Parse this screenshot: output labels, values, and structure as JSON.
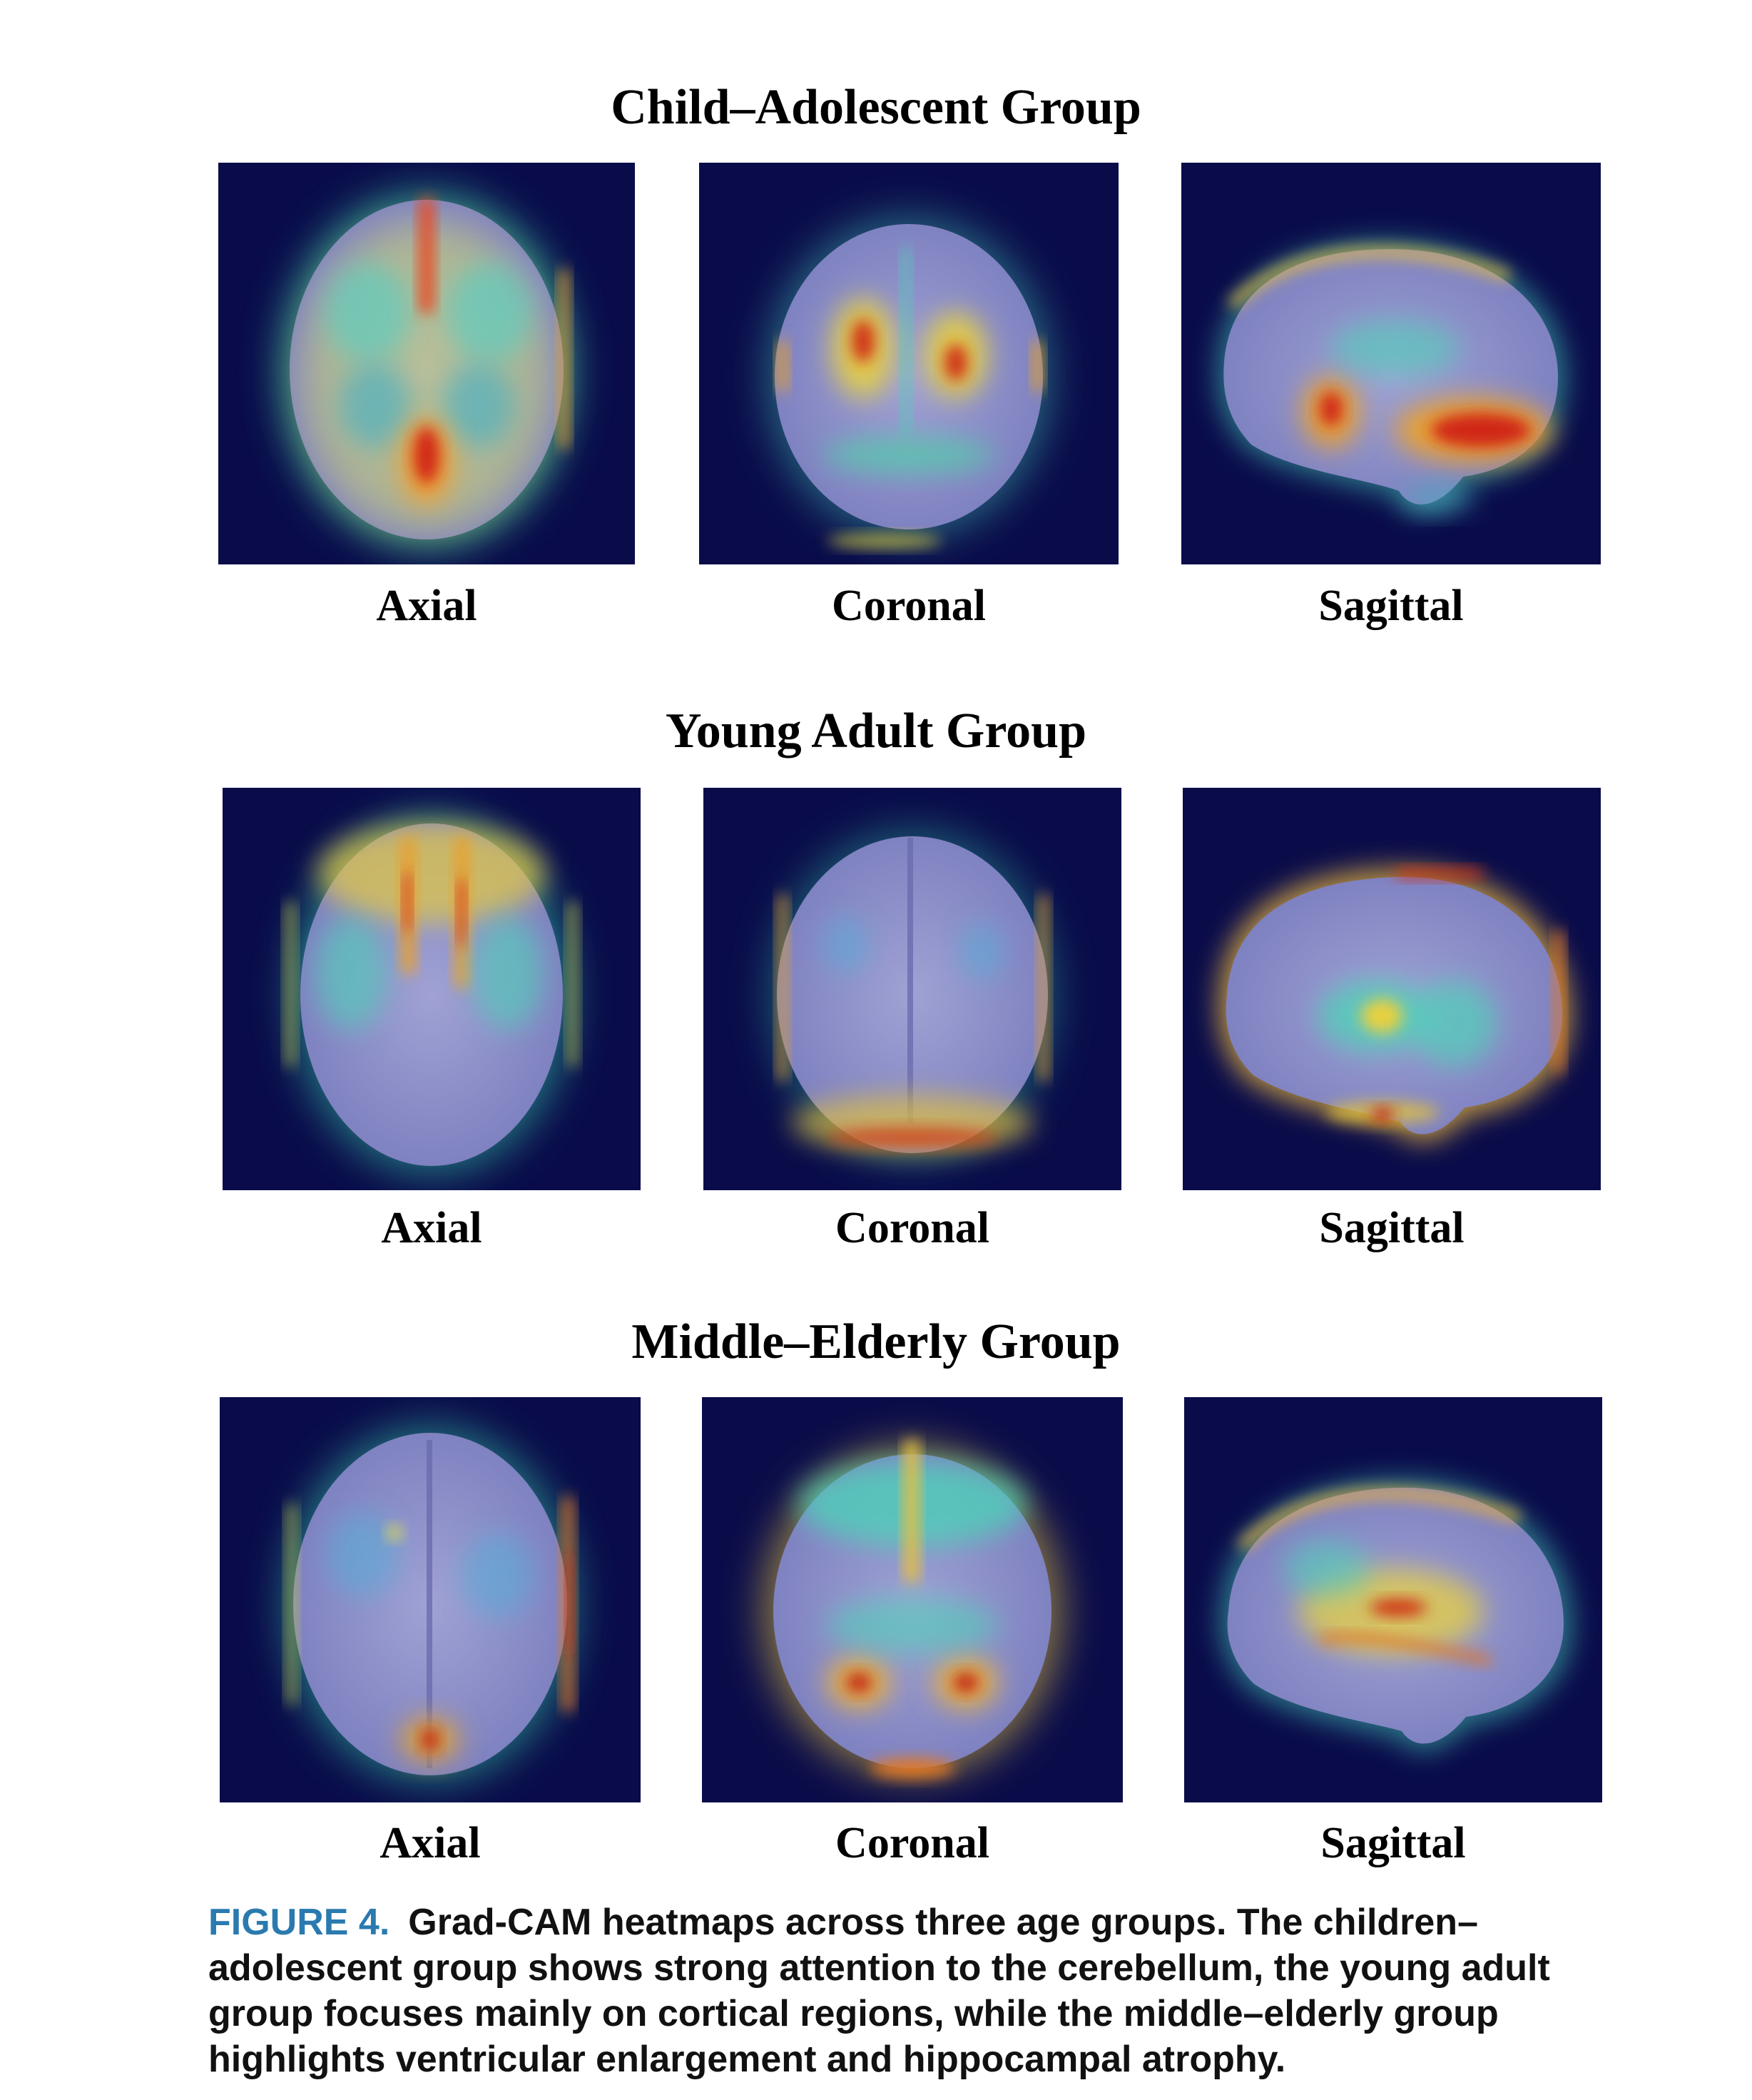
{
  "figure": {
    "label": "FIGURE 4.",
    "caption": "Grad-CAM heatmaps across three age groups. The children–adolescent group shows strong attention to the cerebellum, the young adult group focuses mainly on cortical regions, while the middle–elderly group highlights ventricular enlargement and hippocampal atrophy."
  },
  "groups": [
    {
      "title": "Child–Adolescent Group",
      "views": [
        "Axial",
        "Coronal",
        "Sagittal"
      ]
    },
    {
      "title": "Young Adult Group",
      "views": [
        "Axial",
        "Coronal",
        "Sagittal"
      ]
    },
    {
      "title": "Middle–Elderly Group",
      "views": [
        "Axial",
        "Coronal",
        "Sagittal"
      ]
    }
  ],
  "colors": {
    "background": "#0a0c4a",
    "brain": "#8e90c8",
    "heat_low": "#3fd0c0",
    "heat_mid": "#e8e048",
    "heat_high": "#d02818",
    "caption_label": "#2a7ab0"
  }
}
